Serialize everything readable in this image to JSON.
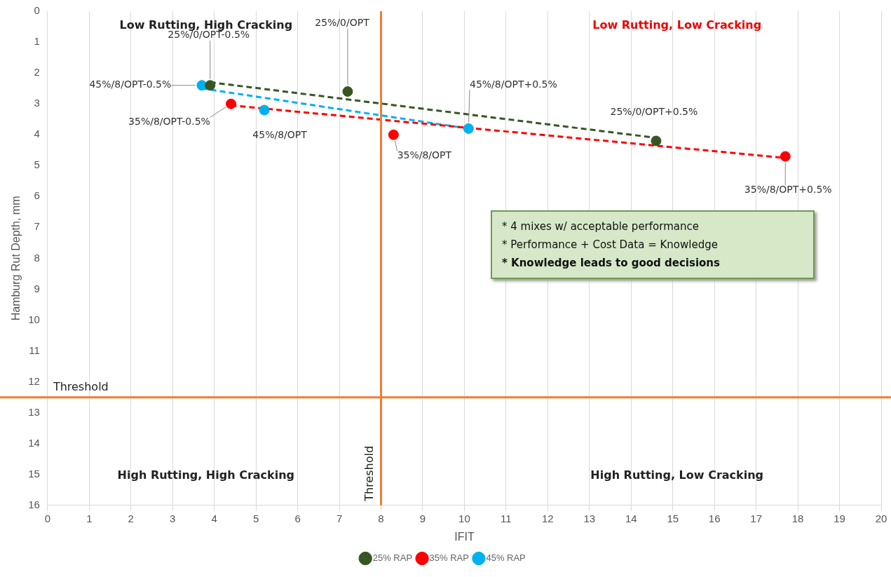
{
  "chart_data": {
    "type": "scatter",
    "xlabel": "IFIT",
    "ylabel": "Hamburg Rut Depth, mm",
    "xlim": [
      0,
      20
    ],
    "xticks": [
      0,
      1,
      2,
      3,
      4,
      5,
      6,
      7,
      8,
      9,
      10,
      11,
      12,
      13,
      14,
      15,
      16,
      17,
      18,
      19,
      20
    ],
    "ylim": [
      16,
      0
    ],
    "yticks": [
      0,
      1,
      2,
      3,
      4,
      5,
      6,
      7,
      8,
      9,
      10,
      11,
      12,
      13,
      14,
      15,
      16
    ],
    "grid": "x",
    "legend": "bottom",
    "marker": "circle",
    "series": [
      {
        "name": "25% RAP",
        "color": "#375623",
        "x": [
          3.9,
          7.2,
          14.6
        ],
        "values": [
          2.4,
          2.6,
          4.2
        ]
      },
      {
        "name": "35% RAP",
        "color": "#ff0000",
        "x": [
          4.4,
          8.3,
          17.7
        ],
        "values": [
          3.0,
          4.0,
          4.7
        ]
      },
      {
        "name": "45% RAP",
        "color": "#00b0f0",
        "x": [
          3.7,
          5.2,
          10.1
        ],
        "values": [
          2.4,
          3.2,
          3.8
        ]
      },
      {
        "type": "line",
        "color": "#375623",
        "line_style": "dashed",
        "marker": "none",
        "x": [
          3.9,
          14.6
        ],
        "values": [
          2.3,
          4.1
        ]
      },
      {
        "type": "line",
        "color": "#ff0000",
        "line_style": "dashed",
        "marker": "none",
        "x": [
          4.4,
          17.7
        ],
        "values": [
          3.05,
          4.75
        ]
      },
      {
        "type": "line",
        "color": "#00b0f0",
        "line_style": "dashed",
        "marker": "none",
        "x": [
          3.7,
          10.1
        ],
        "values": [
          2.5,
          3.8
        ]
      }
    ],
    "ref_lines": [
      {
        "axis": "y",
        "value": 12.5,
        "label": "Threshold",
        "color": "#ed7d31"
      },
      {
        "axis": "x",
        "value": 8,
        "label": "Threshold",
        "color": "#ed7d31"
      }
    ],
    "annotations": [
      {
        "text": "25%/0/OPT-0.5%",
        "x": 3.9,
        "y": 2.4
      },
      {
        "text": "25%/0/OPT",
        "x": 7.2,
        "y": 2.6
      },
      {
        "text": "45%/8/OPT-0.5%",
        "x": 3.7,
        "y": 2.4
      },
      {
        "text": "35%/8/OPT-0.5%",
        "x": 4.4,
        "y": 3.0
      },
      {
        "text": "45%/8/OPT",
        "x": 5.2,
        "y": 3.2
      },
      {
        "text": "35%/8/OPT",
        "x": 8.3,
        "y": 4.0
      },
      {
        "text": "45%/8/OPT+0.5%",
        "x": 10.1,
        "y": 3.8
      },
      {
        "text": "25%/0/OPT+0.5%",
        "x": 14.6,
        "y": 4.2
      },
      {
        "text": "35%/8/OPT+0.5%",
        "x": 17.7,
        "y": 4.7
      },
      "Low Rutting, High Cracking",
      "Low Rutting, Low Cracking",
      "High Rutting, High Cracking",
      "High Rutting, Low Cracking",
      "* 4 mixes w/ acceptable performance",
      "* Performance + Cost Data = Knowledge",
      "* Knowledge leads to good decisions"
    ]
  }
}
